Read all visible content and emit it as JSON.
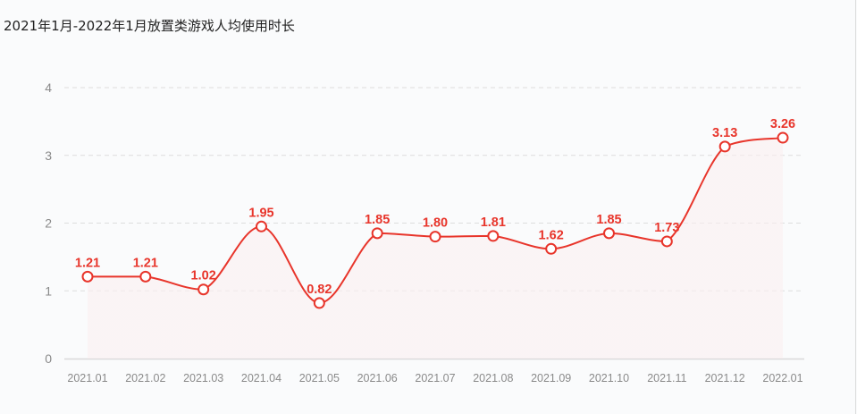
{
  "title": "2021年1月-2022年1月放置类游戏人均使用时长",
  "colors": {
    "line": "#e8352b",
    "area_top": "#e8706a",
    "area_bottom": "#fbeff0",
    "area_top_tint": "#c9c8e6",
    "grid": "#dddddd",
    "axis": "#d9d9d9",
    "tick_text": "#8a8a8a",
    "background": "#fafbfc"
  },
  "chart_data": {
    "type": "area",
    "title": "2021年1月-2022年1月放置类游戏人均使用时长",
    "xlabel": "",
    "ylabel": "",
    "categories": [
      "2021.01",
      "2021.02",
      "2021.03",
      "2021.04",
      "2021.05",
      "2021.06",
      "2021.07",
      "2021.08",
      "2021.09",
      "2021.10",
      "2021.11",
      "2021.12",
      "2022.01"
    ],
    "series": [
      {
        "name": "人均使用时长",
        "values": [
          1.21,
          1.21,
          1.02,
          1.95,
          0.82,
          1.85,
          1.8,
          1.81,
          1.62,
          1.85,
          1.73,
          3.13,
          3.26
        ],
        "labels": [
          "1.21",
          "1.21",
          "1.02",
          "1.95",
          "0.82",
          "1.85",
          "1.80",
          "1.81",
          "1.62",
          "1.85",
          "1.73",
          "3.13",
          "3.26"
        ]
      }
    ],
    "ylim": [
      0,
      4
    ],
    "yticks": [
      0,
      1,
      2,
      3,
      4
    ],
    "grid": true,
    "smooth": true,
    "legend": "none"
  }
}
